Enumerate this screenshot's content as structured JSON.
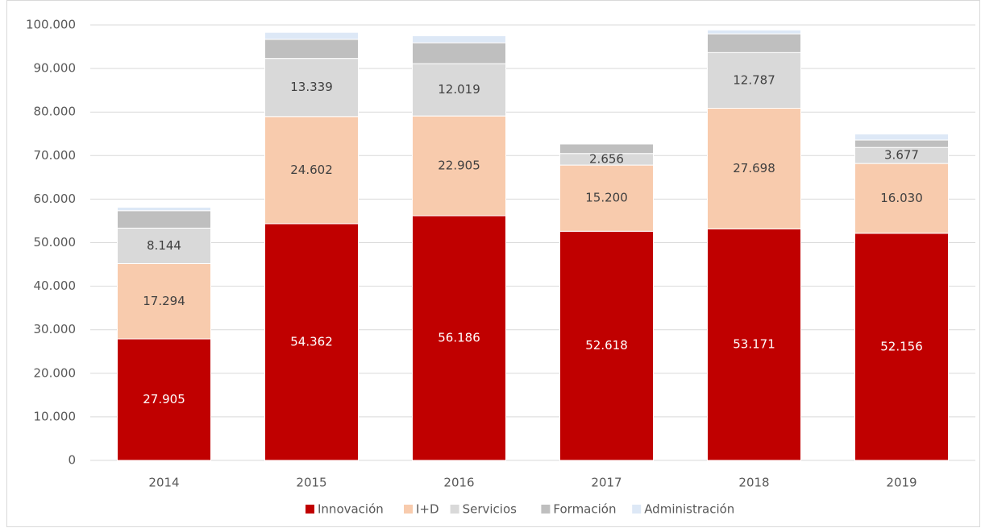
{
  "chart_data": {
    "type": "stacked_bar",
    "categories": [
      "2014",
      "2015",
      "2016",
      "2017",
      "2018",
      "2019"
    ],
    "series": [
      {
        "name": "Innovación",
        "color": "#c00000",
        "values": [
          27905,
          54362,
          56186,
          52618,
          53171,
          52156
        ],
        "value_labels": [
          "27.905",
          "54.362",
          "56.186",
          "52.618",
          "53.171",
          "52.156"
        ]
      },
      {
        "name": "I+D",
        "color": "#f8cbad",
        "values": [
          17294,
          24602,
          22905,
          15200,
          27698,
          16030
        ],
        "value_labels": [
          "17.294",
          "24.602",
          "22.905",
          "15.200",
          "27.698",
          "16.030"
        ]
      },
      {
        "name": "Servicios",
        "color": "#d9d9d9",
        "values": [
          8144,
          13339,
          12019,
          2656,
          12787,
          3677
        ],
        "value_labels": [
          "8.144",
          "13.339",
          "12.019",
          "2.656",
          "12.787",
          "3.677"
        ]
      },
      {
        "name": "Formación",
        "color": "#bfbfbf",
        "values": [
          4000,
          4400,
          4800,
          2200,
          4300,
          1700
        ]
      },
      {
        "name": "Administración",
        "color": "#dde8f6",
        "values": [
          800,
          1600,
          1600,
          200,
          900,
          1400
        ]
      }
    ],
    "ylim": [
      0,
      100000
    ],
    "yticks": [
      0,
      {
        "value": 10000,
        "label": "10.000"
      },
      {
        "value": 20000,
        "label": "20.000"
      },
      {
        "value": 30000,
        "label": "30.000"
      },
      {
        "value": 40000,
        "label": "40.000"
      },
      {
        "value": 50000,
        "label": "50.000"
      },
      {
        "value": 60000,
        "label": "60.000"
      },
      {
        "value": 70000,
        "label": "70.000"
      },
      {
        "value": 80000,
        "label": "80.000"
      },
      {
        "value": 90000,
        "label": "90.000"
      },
      {
        "value": 100000,
        "label": "100.000"
      }
    ],
    "grid": true,
    "legend": "bottom"
  }
}
